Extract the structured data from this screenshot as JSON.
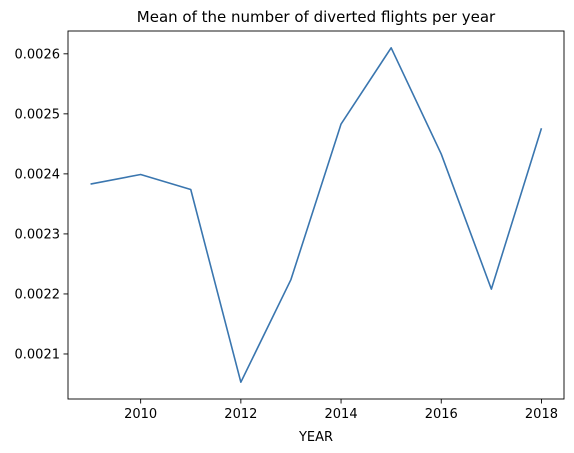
{
  "chart_data": {
    "type": "line",
    "title": "Mean of the number of diverted flights per year",
    "xlabel": "YEAR",
    "ylabel": "",
    "x": [
      2009,
      2010,
      2011,
      2012,
      2013,
      2014,
      2015,
      2016,
      2017,
      2018
    ],
    "series": [
      {
        "values": [
          0.002383,
          0.002399,
          0.002374,
          0.002053,
          0.002224,
          0.002483,
          0.00261,
          0.002433,
          0.002208,
          0.002476
        ]
      }
    ],
    "xlim": [
      2008.55,
      2018.45
    ],
    "ylim": [
      0.002025,
      0.002638
    ],
    "xticks": [
      2010,
      2012,
      2014,
      2016,
      2018
    ],
    "xtick_labels": [
      "2010",
      "2012",
      "2014",
      "2016",
      "2018"
    ],
    "yticks": [
      0.0021,
      0.0022,
      0.0023,
      0.0024,
      0.0025,
      0.0026
    ],
    "ytick_labels": [
      "0.0021",
      "0.0022",
      "0.0023",
      "0.0024",
      "0.0025",
      "0.0026"
    ],
    "grid": false,
    "line_color": "#3a76af"
  }
}
